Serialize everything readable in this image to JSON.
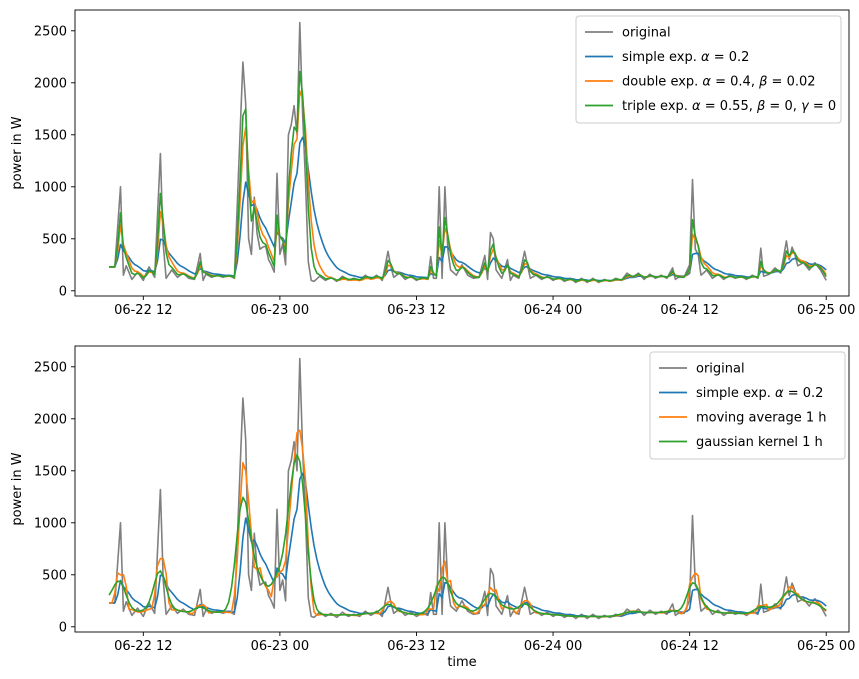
{
  "chart_data": [
    {
      "type": "line",
      "title": "",
      "xlabel": "",
      "ylabel": "power in W",
      "xlim": [
        "2023-06-22 06:00",
        "2023-06-25 02:00"
      ],
      "ylim": [
        -50,
        2700
      ],
      "x_tick_labels": [
        "06-22 12",
        "06-23 00",
        "06-23 12",
        "06-24 00",
        "06-24 12",
        "06-25 00"
      ],
      "y_tick_labels": [
        "0",
        "500",
        "1000",
        "1500",
        "2000",
        "2500"
      ],
      "y_ticks": [
        0,
        500,
        1000,
        1500,
        2000,
        2500
      ],
      "legend_position": "upper right",
      "grid": false,
      "series": [
        {
          "name": "original",
          "color": "#808080",
          "label_parts": [
            "original"
          ],
          "key": "original"
        },
        {
          "name": "simple exp. α = 0.2",
          "color": "#1f77b4",
          "label_parts": [
            "simple exp. ",
            "α",
            " = 0.2"
          ],
          "key": "simple"
        },
        {
          "name": "double exp. α = 0.4, β = 0.02",
          "color": "#ff7f0e",
          "label_parts": [
            "double exp. ",
            "α",
            " = 0.4, ",
            "β",
            " = 0.02"
          ],
          "key": "double"
        },
        {
          "name": "triple exp. α = 0.55, β = 0, γ = 0",
          "color": "#2ca02c",
          "label_parts": [
            "triple exp. ",
            "α",
            " = 0.55, ",
            "β",
            " = 0, ",
            "γ",
            " = 0"
          ],
          "key": "triple"
        }
      ]
    },
    {
      "type": "line",
      "title": "",
      "xlabel": "time",
      "ylabel": "power in W",
      "xlim": [
        "2023-06-22 06:00",
        "2023-06-25 02:00"
      ],
      "ylim": [
        -50,
        2700
      ],
      "x_tick_labels": [
        "06-22 12",
        "06-23 00",
        "06-23 12",
        "06-24 00",
        "06-24 12",
        "06-25 00"
      ],
      "y_tick_labels": [
        "0",
        "500",
        "1000",
        "1500",
        "2000",
        "2500"
      ],
      "y_ticks": [
        0,
        500,
        1000,
        1500,
        2000,
        2500
      ],
      "legend_position": "upper right",
      "grid": false,
      "series": [
        {
          "name": "original",
          "color": "#808080",
          "label_parts": [
            "original"
          ],
          "key": "original"
        },
        {
          "name": "simple exp. α = 0.2",
          "color": "#1f77b4",
          "label_parts": [
            "simple exp. ",
            "α",
            " = 0.2"
          ],
          "key": "simple"
        },
        {
          "name": "moving average 1 h",
          "color": "#ff7f0e",
          "label_parts": [
            "moving average 1 h"
          ],
          "key": "moving"
        },
        {
          "name": "gaussian kernel 1 h",
          "color": "#2ca02c",
          "label_parts": [
            "gaussian kernel 1 h"
          ],
          "key": "gaussian"
        }
      ]
    }
  ],
  "time_series": {
    "start": "2023-06-22 09:00",
    "end": "2023-06-25 00:00",
    "step_minutes": 15,
    "original_points": [
      [
        "2023-06-22 09:00",
        230
      ],
      [
        "2023-06-22 09:30",
        230
      ],
      [
        "2023-06-22 10:00",
        1000
      ],
      [
        "2023-06-22 10:15",
        150
      ],
      [
        "2023-06-22 10:30",
        240
      ],
      [
        "2023-06-22 11:00",
        110
      ],
      [
        "2023-06-22 11:30",
        180
      ],
      [
        "2023-06-22 12:00",
        100
      ],
      [
        "2023-06-22 12:30",
        230
      ],
      [
        "2023-06-22 13:00",
        130
      ],
      [
        "2023-06-22 13:30",
        1320
      ],
      [
        "2023-06-22 13:45",
        450
      ],
      [
        "2023-06-22 14:00",
        120
      ],
      [
        "2023-06-22 14:30",
        200
      ],
      [
        "2023-06-22 15:00",
        130
      ],
      [
        "2023-06-22 15:30",
        170
      ],
      [
        "2023-06-22 16:00",
        120
      ],
      [
        "2023-06-22 16:30",
        110
      ],
      [
        "2023-06-22 17:00",
        360
      ],
      [
        "2023-06-22 17:15",
        100
      ],
      [
        "2023-06-22 17:30",
        160
      ],
      [
        "2023-06-22 18:00",
        130
      ],
      [
        "2023-06-22 18:30",
        150
      ],
      [
        "2023-06-22 19:00",
        130
      ],
      [
        "2023-06-22 19:30",
        150
      ],
      [
        "2023-06-22 20:00",
        120
      ],
      [
        "2023-06-22 20:30",
        1500
      ],
      [
        "2023-06-22 20:45",
        2200
      ],
      [
        "2023-06-22 21:00",
        1800
      ],
      [
        "2023-06-22 21:15",
        500
      ],
      [
        "2023-06-22 21:30",
        350
      ],
      [
        "2023-06-22 21:45",
        900
      ],
      [
        "2023-06-22 22:00",
        550
      ],
      [
        "2023-06-22 22:15",
        400
      ],
      [
        "2023-06-22 22:30",
        420
      ],
      [
        "2023-06-22 22:45",
        430
      ],
      [
        "2023-06-22 23:00",
        300
      ],
      [
        "2023-06-22 23:15",
        250
      ],
      [
        "2023-06-22 23:30",
        180
      ],
      [
        "2023-06-22 23:45",
        1130
      ],
      [
        "2023-06-23 00:00",
        350
      ],
      [
        "2023-06-23 00:15",
        450
      ],
      [
        "2023-06-23 00:30",
        250
      ],
      [
        "2023-06-23 00:45",
        1500
      ],
      [
        "2023-06-23 01:00",
        1600
      ],
      [
        "2023-06-23 01:15",
        1780
      ],
      [
        "2023-06-23 01:30",
        1500
      ],
      [
        "2023-06-23 01:45",
        2580
      ],
      [
        "2023-06-23 02:00",
        1700
      ],
      [
        "2023-06-23 02:15",
        1050
      ],
      [
        "2023-06-23 02:30",
        280
      ],
      [
        "2023-06-23 02:45",
        100
      ],
      [
        "2023-06-23 03:00",
        90
      ],
      [
        "2023-06-23 03:30",
        140
      ],
      [
        "2023-06-23 04:00",
        100
      ],
      [
        "2023-06-23 04:30",
        130
      ],
      [
        "2023-06-23 05:00",
        90
      ],
      [
        "2023-06-23 05:30",
        140
      ],
      [
        "2023-06-23 06:00",
        100
      ],
      [
        "2023-06-23 06:30",
        120
      ],
      [
        "2023-06-23 07:00",
        100
      ],
      [
        "2023-06-23 07:30",
        150
      ],
      [
        "2023-06-23 08:00",
        110
      ],
      [
        "2023-06-23 08:30",
        150
      ],
      [
        "2023-06-23 09:00",
        100
      ],
      [
        "2023-06-23 09:30",
        380
      ],
      [
        "2023-06-23 09:45",
        230
      ],
      [
        "2023-06-23 10:00",
        130
      ],
      [
        "2023-06-23 10:30",
        170
      ],
      [
        "2023-06-23 11:00",
        110
      ],
      [
        "2023-06-23 11:30",
        140
      ],
      [
        "2023-06-23 12:00",
        100
      ],
      [
        "2023-06-23 12:30",
        130
      ],
      [
        "2023-06-23 13:00",
        110
      ],
      [
        "2023-06-23 13:15",
        330
      ],
      [
        "2023-06-23 13:30",
        120
      ],
      [
        "2023-06-23 13:45",
        120
      ],
      [
        "2023-06-23 14:00",
        1000
      ],
      [
        "2023-06-23 14:15",
        120
      ],
      [
        "2023-06-23 14:30",
        1000
      ],
      [
        "2023-06-23 14:45",
        400
      ],
      [
        "2023-06-23 15:00",
        200
      ],
      [
        "2023-06-23 15:30",
        150
      ],
      [
        "2023-06-23 16:00",
        250
      ],
      [
        "2023-06-23 16:30",
        150
      ],
      [
        "2023-06-23 17:00",
        120
      ],
      [
        "2023-06-23 17:30",
        130
      ],
      [
        "2023-06-23 18:00",
        340
      ],
      [
        "2023-06-23 18:15",
        110
      ],
      [
        "2023-06-23 18:30",
        560
      ],
      [
        "2023-06-23 18:45",
        500
      ],
      [
        "2023-06-23 19:00",
        200
      ],
      [
        "2023-06-23 19:30",
        120
      ],
      [
        "2023-06-23 20:00",
        300
      ],
      [
        "2023-06-23 20:15",
        100
      ],
      [
        "2023-06-23 20:30",
        150
      ],
      [
        "2023-06-23 21:00",
        120
      ],
      [
        "2023-06-23 21:30",
        380
      ],
      [
        "2023-06-23 21:45",
        250
      ],
      [
        "2023-06-23 22:00",
        120
      ],
      [
        "2023-06-23 22:30",
        150
      ],
      [
        "2023-06-23 23:00",
        110
      ],
      [
        "2023-06-23 23:30",
        140
      ],
      [
        "2023-06-24 00:00",
        100
      ],
      [
        "2023-06-24 00:30",
        130
      ],
      [
        "2023-06-24 01:00",
        90
      ],
      [
        "2023-06-24 01:30",
        120
      ],
      [
        "2023-06-24 02:00",
        80
      ],
      [
        "2023-06-24 02:30",
        120
      ],
      [
        "2023-06-24 03:00",
        80
      ],
      [
        "2023-06-24 03:30",
        120
      ],
      [
        "2023-06-24 04:00",
        80
      ],
      [
        "2023-06-24 04:30",
        110
      ],
      [
        "2023-06-24 05:00",
        90
      ],
      [
        "2023-06-24 05:30",
        120
      ],
      [
        "2023-06-24 06:00",
        100
      ],
      [
        "2023-06-24 06:30",
        170
      ],
      [
        "2023-06-24 07:00",
        130
      ],
      [
        "2023-06-24 07:30",
        170
      ],
      [
        "2023-06-24 08:00",
        110
      ],
      [
        "2023-06-24 08:30",
        160
      ],
      [
        "2023-06-24 09:00",
        120
      ],
      [
        "2023-06-24 09:30",
        150
      ],
      [
        "2023-06-24 10:00",
        120
      ],
      [
        "2023-06-24 10:30",
        220
      ],
      [
        "2023-06-24 10:45",
        110
      ],
      [
        "2023-06-24 11:00",
        130
      ],
      [
        "2023-06-24 11:30",
        130
      ],
      [
        "2023-06-24 12:00",
        250
      ],
      [
        "2023-06-24 12:15",
        1070
      ],
      [
        "2023-06-24 12:30",
        400
      ],
      [
        "2023-06-24 12:45",
        350
      ],
      [
        "2023-06-24 13:00",
        150
      ],
      [
        "2023-06-24 13:30",
        200
      ],
      [
        "2023-06-24 14:00",
        120
      ],
      [
        "2023-06-24 14:30",
        160
      ],
      [
        "2023-06-24 15:00",
        110
      ],
      [
        "2023-06-24 15:30",
        150
      ],
      [
        "2023-06-24 16:00",
        120
      ],
      [
        "2023-06-24 16:30",
        140
      ],
      [
        "2023-06-24 17:00",
        110
      ],
      [
        "2023-06-24 17:30",
        150
      ],
      [
        "2023-06-24 18:00",
        120
      ],
      [
        "2023-06-24 18:15",
        410
      ],
      [
        "2023-06-24 18:30",
        140
      ],
      [
        "2023-06-24 19:00",
        160
      ],
      [
        "2023-06-24 19:30",
        220
      ],
      [
        "2023-06-24 20:00",
        170
      ],
      [
        "2023-06-24 20:30",
        480
      ],
      [
        "2023-06-24 20:45",
        300
      ],
      [
        "2023-06-24 21:00",
        420
      ],
      [
        "2023-06-24 21:15",
        350
      ],
      [
        "2023-06-24 21:30",
        240
      ],
      [
        "2023-06-24 22:00",
        270
      ],
      [
        "2023-06-24 22:30",
        200
      ],
      [
        "2023-06-24 23:00",
        270
      ],
      [
        "2023-06-24 23:30",
        200
      ],
      [
        "2023-06-25 00:00",
        100
      ]
    ],
    "smoothing": {
      "simple": {
        "method": "exponential",
        "alpha": 0.2
      },
      "double": {
        "method": "exponential_trend",
        "alpha": 0.4,
        "beta": 0.02
      },
      "triple": {
        "method": "exponential_trend",
        "alpha": 0.55,
        "beta": 0
      },
      "moving": {
        "method": "moving_average",
        "window_hours": 1
      },
      "gaussian": {
        "method": "gaussian_kernel",
        "window_hours": 1
      }
    }
  },
  "colors": {
    "background": "#ffffff",
    "axes": "#000000"
  }
}
